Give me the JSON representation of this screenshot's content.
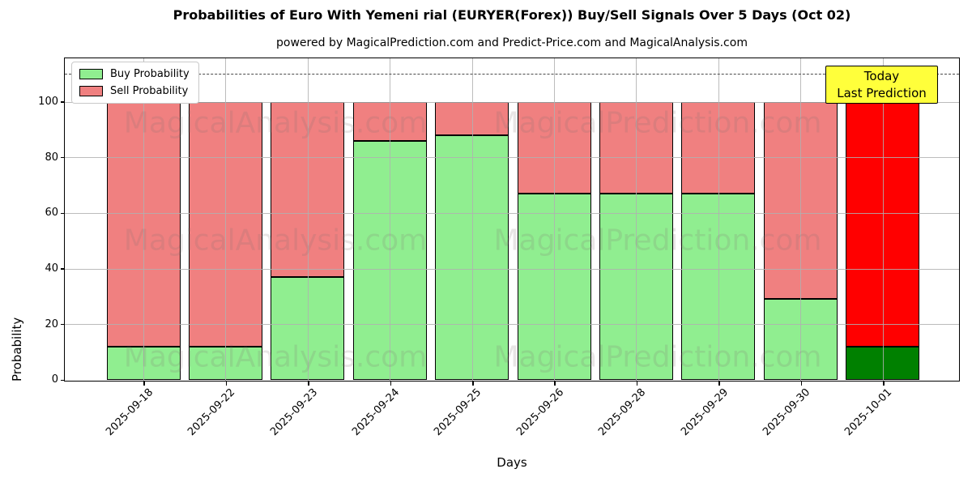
{
  "title": "Probabilities of Euro With Yemeni rial (EURYER(Forex)) Buy/Sell Signals Over 5 Days (Oct 02)",
  "subtitle": "powered by MagicalPrediction.com and Predict-Price.com and MagicalAnalysis.com",
  "legend": {
    "buy": "Buy Probability",
    "sell": "Sell Probability"
  },
  "annotation": {
    "line1": "Today",
    "line2": "Last Prediction"
  },
  "axes": {
    "ylabel": "Probability",
    "xlabel": "Days",
    "yticks": [
      0,
      20,
      40,
      60,
      80,
      100
    ]
  },
  "watermarks": {
    "left_text": "MagicalAnalysis.com",
    "right_text": "MagicalPrediction.com"
  },
  "colors": {
    "buy": "#90EE90",
    "sell": "#F08080",
    "today_buy": "#008000",
    "today_sell": "#FF0000",
    "annotation_bg": "#FFFF3B",
    "grid": "#b0b0b0"
  },
  "chart_data": {
    "type": "bar",
    "stacked": true,
    "title": "Probabilities of Euro With Yemeni rial (EURYER(Forex)) Buy/Sell Signals Over 5 Days (Oct 02)",
    "xlabel": "Days",
    "ylabel": "Probability",
    "categories": [
      "2025-09-18",
      "2025-09-22",
      "2025-09-23",
      "2025-09-24",
      "2025-09-25",
      "2025-09-26",
      "2025-09-28",
      "2025-09-29",
      "2025-09-30",
      "2025-10-01"
    ],
    "series": [
      {
        "name": "Buy Probability",
        "color": "#90EE90",
        "values": [
          12,
          12,
          37,
          86,
          88,
          67,
          67,
          67,
          29,
          12
        ]
      },
      {
        "name": "Sell Probability",
        "color": "#F08080",
        "values": [
          88,
          88,
          63,
          14,
          12,
          33,
          33,
          33,
          71,
          88
        ]
      }
    ],
    "today_bar": {
      "category": "2025-10-01",
      "buy_color": "#008000",
      "sell_color": "#FF0000"
    },
    "ylim": [
      0,
      115.6
    ],
    "yticks": [
      0,
      20,
      40,
      60,
      80,
      100
    ],
    "dashed_line_y": 110,
    "grid": true,
    "legend_position": "upper left"
  }
}
